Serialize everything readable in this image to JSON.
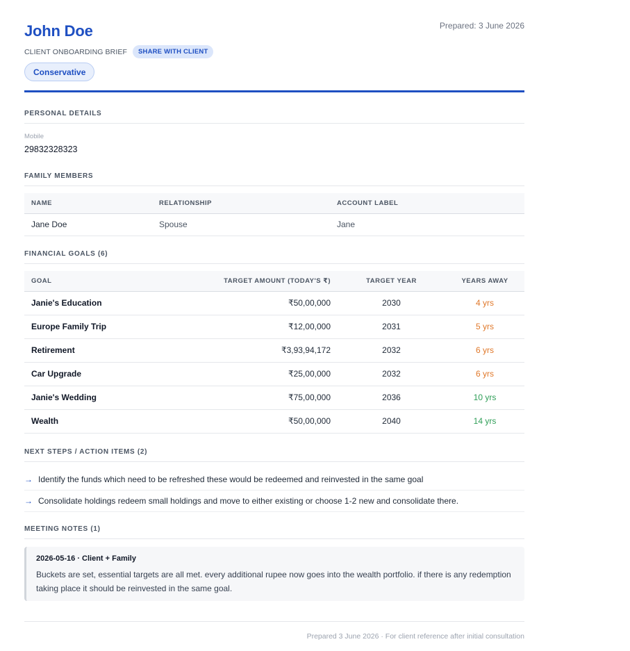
{
  "header": {
    "client_name": "John Doe",
    "prepared": "Prepared: 3 June 2026",
    "subtitle": "CLIENT ONBOARDING BRIEF",
    "share_badge": "SHARE WITH CLIENT",
    "risk_profile": "Conservative"
  },
  "personal": {
    "title": "PERSONAL DETAILS",
    "mobile_label": "Mobile",
    "mobile_value": "29832328323"
  },
  "family": {
    "title": "FAMILY MEMBERS",
    "columns": [
      "NAME",
      "RELATIONSHIP",
      "ACCOUNT LABEL"
    ],
    "rows": [
      {
        "name": "Jane Doe",
        "relationship": "Spouse",
        "account_label": "Jane"
      }
    ]
  },
  "goals": {
    "title": "FINANCIAL GOALS (6)",
    "columns": [
      "GOAL",
      "TARGET AMOUNT (TODAY'S ₹)",
      "TARGET YEAR",
      "YEARS AWAY"
    ],
    "rows": [
      {
        "goal": "Janie's Education",
        "amount": "₹50,00,000",
        "year": "2030",
        "away": "4 yrs"
      },
      {
        "goal": "Europe Family Trip",
        "amount": "₹12,00,000",
        "year": "2031",
        "away": "5 yrs"
      },
      {
        "goal": "Retirement",
        "amount": "₹3,93,94,172",
        "year": "2032",
        "away": "6 yrs"
      },
      {
        "goal": "Car Upgrade",
        "amount": "₹25,00,000",
        "year": "2032",
        "away": "6 yrs"
      },
      {
        "goal": "Janie's Wedding",
        "amount": "₹75,00,000",
        "year": "2036",
        "away": "10 yrs"
      },
      {
        "goal": "Wealth",
        "amount": "₹50,00,000",
        "year": "2040",
        "away": "14 yrs"
      }
    ],
    "colors": {
      "near": "#e0782a",
      "far": "#2f9e57"
    }
  },
  "next_steps": {
    "title": "NEXT STEPS / ACTION ITEMS (2)",
    "arrow": "→",
    "items": [
      "Identify the funds which need to be refreshed these would be redeemed and reinvested in the same goal",
      "Consolidate holdings redeem small holdings and move to either existing or choose 1-2 new and consolidate there."
    ]
  },
  "notes": {
    "title": "MEETING NOTES (1)",
    "entries": [
      {
        "heading": "2026-05-16 · Client + Family",
        "body": "Buckets are set, essential targets are all met. every additional rupee now goes into the wealth portfolio. if there is any redemption taking place it should be reinvested in the same goal."
      }
    ]
  },
  "footer": {
    "text": "Prepared 3 June 2026 · For client reference after initial consultation"
  },
  "theme": {
    "accent": "#1e4fc2"
  }
}
